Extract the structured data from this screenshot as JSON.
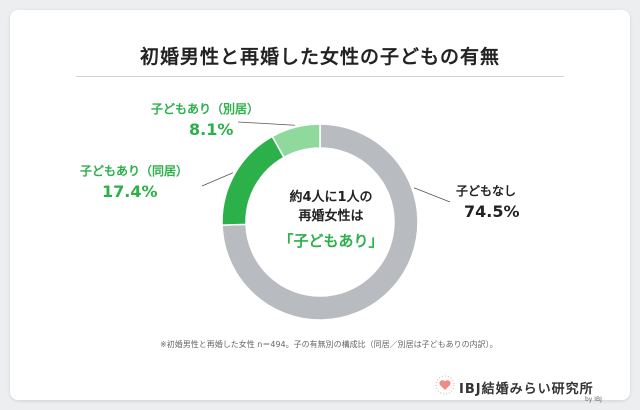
{
  "chart_data": {
    "type": "pie",
    "title": "初婚男性と再婚した女性の子どもの有無",
    "slices": [
      {
        "label": "子どもなし",
        "value": 74.5,
        "value_label": "74.5%",
        "color": "#b8bcc1"
      },
      {
        "label": "子どもあり（同居）",
        "value": 17.4,
        "value_label": "17.4%",
        "color": "#2bb04a"
      },
      {
        "label": "子どもあり（別居）",
        "value": 8.1,
        "value_label": "8.1%",
        "color": "#8fd99d"
      }
    ],
    "center_text": {
      "line1": "約4人に1人の",
      "line2": "再婚女性は",
      "line3": "「子どもあり」"
    },
    "note": "※初婚男性と再婚した女性 n＝494。子の有無別の構成比（同居／別居は子どもありの内訳）。"
  },
  "logo": {
    "text": "IBJ結婚みらい研究所",
    "by": "by IBJ"
  }
}
